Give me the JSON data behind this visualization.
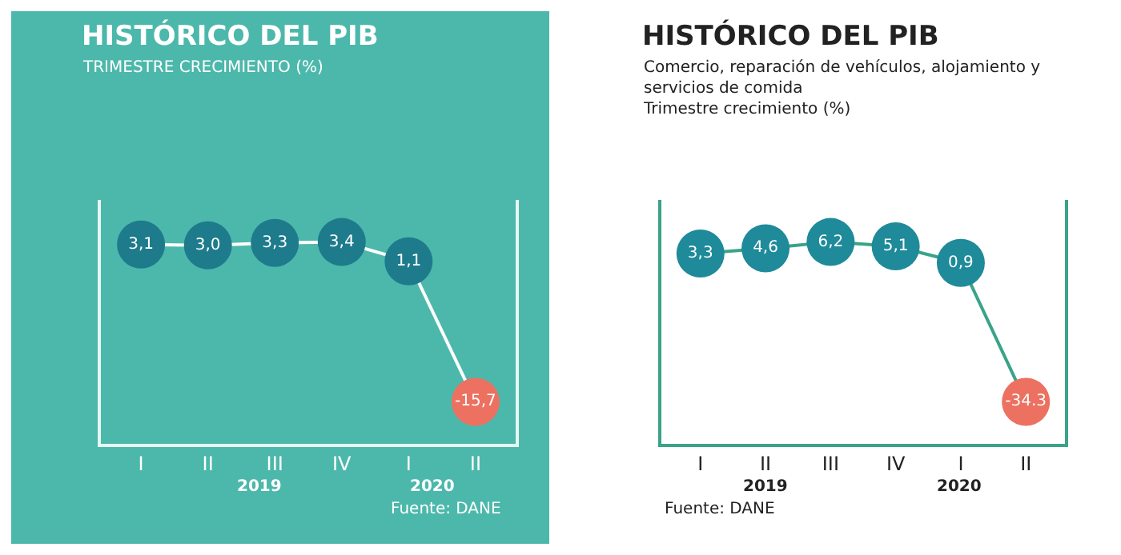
{
  "chart_data": [
    {
      "type": "line",
      "title": "HISTÓRICO DEL PIB",
      "subtitle": "TRIMESTRE CRECIMIENTO (%)",
      "categories": [
        "I",
        "II",
        "III",
        "IV",
        "I",
        "II"
      ],
      "tick_labels": "x",
      "grid": false,
      "marker": "circle",
      "line_style": "solid",
      "series": [
        {
          "color": "#ffffff",
          "colors": [
            "#1e7b8c",
            "#1e7b8c",
            "#1e7b8c",
            "#1e7b8c",
            "#1e7b8c",
            "#ec7161"
          ],
          "values": [
            3.1,
            3.0,
            3.3,
            3.4,
            1.1,
            -15.7
          ],
          "value_labels": [
            "3,1",
            "3,0",
            "3,3",
            "3,4",
            "1,1",
            "-15,7"
          ]
        }
      ],
      "annotations": [
        "2019",
        "2020",
        "Fuente: DANE"
      ]
    },
    {
      "type": "line",
      "title": "HISTÓRICO DEL PIB",
      "subtitle": "Comercio, reparación de vehículos, alojamiento y servicios de comida\nTrimestre crecimiento (%)",
      "categories": [
        "I",
        "II",
        "III",
        "IV",
        "I",
        "II"
      ],
      "tick_labels": "x",
      "grid": false,
      "marker": "circle",
      "line_style": "solid",
      "series": [
        {
          "color": "#3aa389",
          "colors": [
            "#1e8a9a",
            "#1e8a9a",
            "#1e8a9a",
            "#1e8a9a",
            "#1e8a9a",
            "#ec7161"
          ],
          "values": [
            3.3,
            4.6,
            6.2,
            5.1,
            0.9,
            -34.3
          ],
          "value_labels": [
            "3,3",
            "4,6",
            "6,2",
            "5,1",
            "0,9",
            "-34.3"
          ]
        }
      ],
      "annotations": [
        "2019",
        "2020",
        "Fuente: DANE"
      ]
    }
  ]
}
